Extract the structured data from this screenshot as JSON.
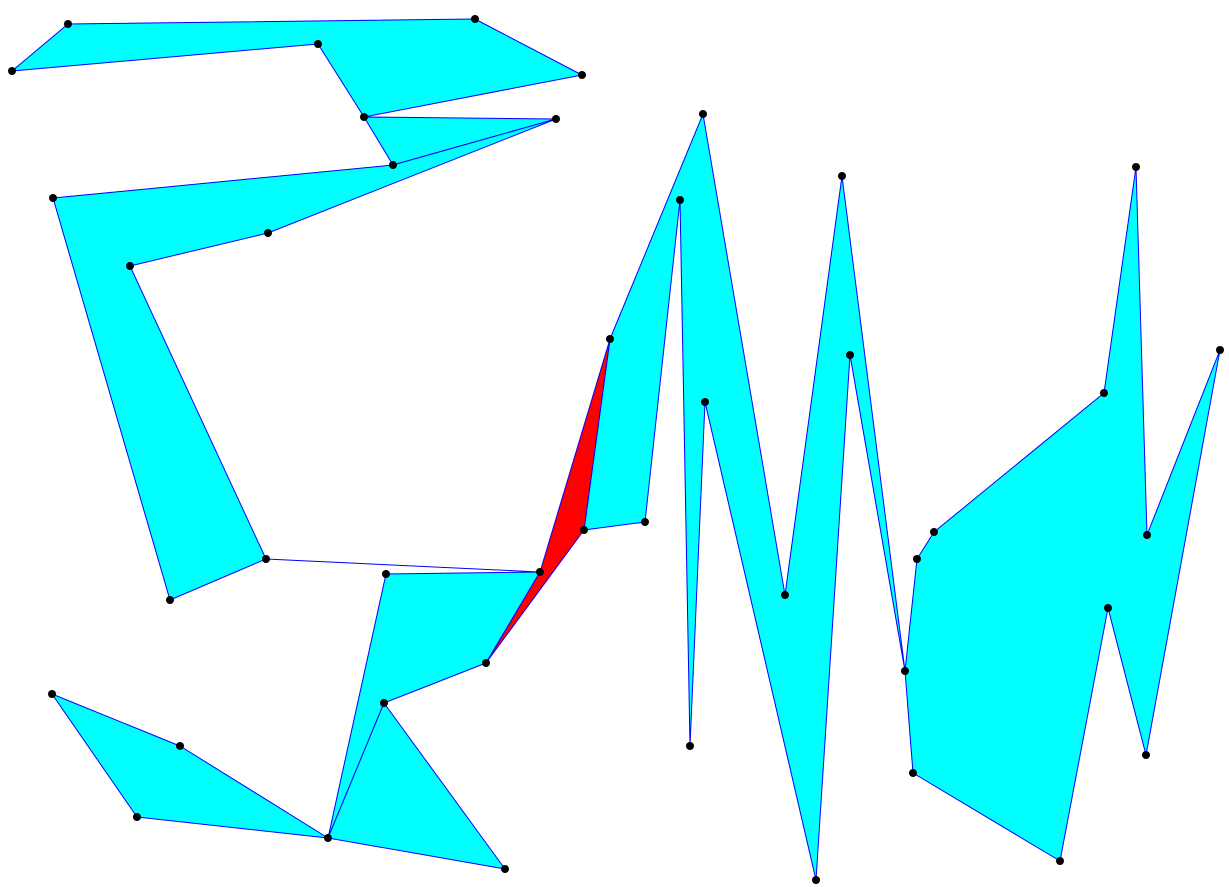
{
  "diagram": {
    "kind": "polygon-partition",
    "colors": {
      "background": "#ffffff",
      "region_fill": "#00ffff",
      "highlight_fill": "#ff0000",
      "edge": "#0000ff",
      "vertex": "#000000"
    }
  }
}
